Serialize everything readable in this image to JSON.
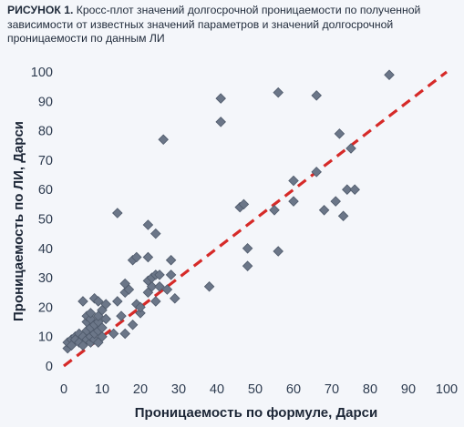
{
  "chart_data": {
    "type": "scatter",
    "title": "РИСУНОК 1.",
    "subtitle": "Кросс-плот значений долгосрочной проницаемости по  полученной зависимости от известных значений параметров и значений долгосрочной проницаемости по данным ЛИ",
    "xlabel": "Проницаемость по формуле, Дарси",
    "ylabel": "Проницаемость по ЛИ, Дарси",
    "xlim": [
      0,
      100
    ],
    "ylim": [
      0,
      100
    ],
    "xticks": [
      "0",
      "10",
      "20",
      "30",
      "40",
      "50",
      "60",
      "70",
      "80",
      "90",
      "100"
    ],
    "yticks": [
      "0",
      "10",
      "20",
      "30",
      "40",
      "50",
      "60",
      "70",
      "80",
      "90",
      "100"
    ],
    "grid": false,
    "marker_color": "#6b7688",
    "marker_edge": "#4f5a6b",
    "reference_line": {
      "x": [
        0,
        100
      ],
      "y": [
        0,
        100
      ],
      "color": "#d62a28",
      "style": "dashed"
    },
    "points": [
      [
        1,
        6
      ],
      [
        1,
        8
      ],
      [
        2,
        9
      ],
      [
        2,
        7
      ],
      [
        3,
        10
      ],
      [
        3,
        9
      ],
      [
        4,
        8
      ],
      [
        4,
        11
      ],
      [
        5,
        7
      ],
      [
        5,
        10
      ],
      [
        5,
        22
      ],
      [
        6,
        12
      ],
      [
        6,
        9
      ],
      [
        6,
        15
      ],
      [
        6,
        17
      ],
      [
        7,
        8
      ],
      [
        7,
        10
      ],
      [
        7,
        13
      ],
      [
        7,
        16
      ],
      [
        7,
        18
      ],
      [
        8,
        9
      ],
      [
        8,
        11
      ],
      [
        8,
        14
      ],
      [
        8,
        23
      ],
      [
        9,
        8
      ],
      [
        9,
        12
      ],
      [
        9,
        15
      ],
      [
        9,
        17
      ],
      [
        9,
        22
      ],
      [
        10,
        10
      ],
      [
        10,
        13
      ],
      [
        10,
        19
      ],
      [
        11,
        16
      ],
      [
        11,
        21
      ],
      [
        13,
        11
      ],
      [
        14,
        22
      ],
      [
        14,
        52
      ],
      [
        15,
        17
      ],
      [
        16,
        11
      ],
      [
        16,
        25
      ],
      [
        16,
        28
      ],
      [
        17,
        26
      ],
      [
        18,
        14
      ],
      [
        18,
        36
      ],
      [
        19,
        21
      ],
      [
        19,
        37
      ],
      [
        20,
        18
      ],
      [
        20,
        20
      ],
      [
        22,
        25
      ],
      [
        22,
        29
      ],
      [
        22,
        37
      ],
      [
        22,
        48
      ],
      [
        23,
        27
      ],
      [
        23,
        30
      ],
      [
        24,
        22
      ],
      [
        24,
        31
      ],
      [
        24,
        45
      ],
      [
        25,
        27
      ],
      [
        25,
        31
      ],
      [
        26,
        77
      ],
      [
        27,
        26
      ],
      [
        28,
        31
      ],
      [
        28,
        36
      ],
      [
        29,
        23
      ],
      [
        38,
        27
      ],
      [
        46,
        54
      ],
      [
        47,
        55
      ],
      [
        48,
        40
      ],
      [
        48,
        34
      ],
      [
        41,
        91
      ],
      [
        41,
        83
      ],
      [
        56,
        93
      ],
      [
        55,
        53
      ],
      [
        56,
        39
      ],
      [
        60,
        63
      ],
      [
        60,
        56
      ],
      [
        66,
        92
      ],
      [
        66,
        66
      ],
      [
        68,
        53
      ],
      [
        71,
        56
      ],
      [
        72,
        79
      ],
      [
        73,
        51
      ],
      [
        74,
        60
      ],
      [
        75,
        74
      ],
      [
        76,
        60
      ],
      [
        85,
        99
      ]
    ]
  }
}
